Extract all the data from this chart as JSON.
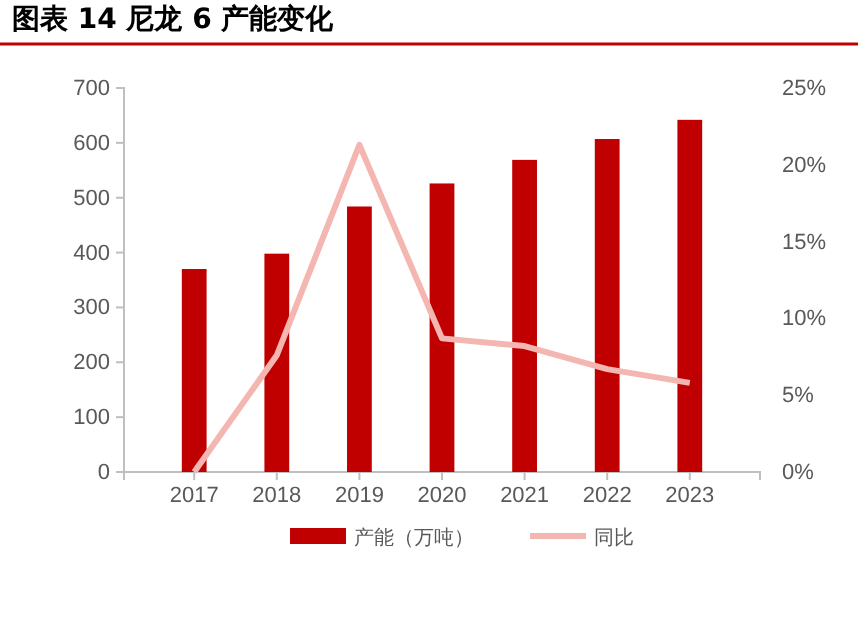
{
  "chart_data": {
    "type": "bar",
    "title": "图表 14  尼龙 6 产能变化",
    "categories": [
      "2017",
      "2018",
      "2019",
      "2020",
      "2021",
      "2022",
      "2023"
    ],
    "series": [
      {
        "name": "产能（万吨）",
        "color": "#c00000",
        "values": [
          370,
          398,
          484,
          526,
          569,
          607,
          642
        ]
      },
      {
        "name": "同比",
        "type": "line",
        "axis": "y2",
        "color": "#f4b6b0",
        "values": [
          0,
          7.6,
          21.3,
          8.7,
          8.2,
          6.7,
          5.8
        ]
      }
    ],
    "ylim": [
      0,
      700
    ],
    "yticks": [
      0,
      100,
      200,
      300,
      400,
      500,
      600,
      700
    ],
    "y2lim": [
      0,
      25
    ],
    "y2ticks": [
      {
        "value": 0,
        "label": "0%"
      },
      {
        "value": 5,
        "label": "5%"
      },
      {
        "value": 10,
        "label": "10%"
      },
      {
        "value": 15,
        "label": "15%"
      },
      {
        "value": 20,
        "label": "20%"
      },
      {
        "value": 25,
        "label": "25%"
      }
    ],
    "grid": false,
    "legend": "bottom",
    "marker": "none"
  }
}
